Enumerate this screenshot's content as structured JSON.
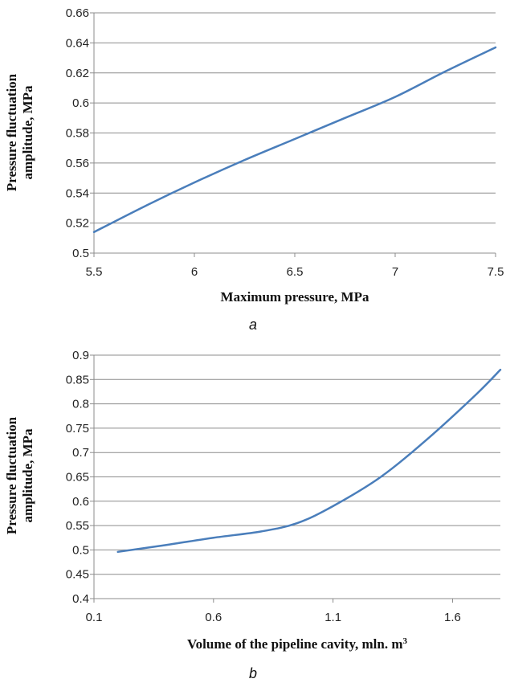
{
  "chart_data": [
    {
      "type": "line",
      "panel_label": "a",
      "xlabel": "Maximum pressure, MPa",
      "ylabel": [
        "Pressure fluctuation",
        "amplitude, MPa"
      ],
      "xlim": [
        5.5,
        7.5
      ],
      "ylim": [
        0.5,
        0.66
      ],
      "x_ticks": [
        5.5,
        6,
        6.5,
        7,
        7.5
      ],
      "y_ticks": [
        0.5,
        0.52,
        0.54,
        0.56,
        0.58,
        0.6,
        0.62,
        0.64,
        0.66
      ],
      "x_tick_labels": [
        "5.5",
        "6",
        "6.5",
        "7",
        "7.5"
      ],
      "y_tick_labels": [
        "0.5",
        "0.52",
        "0.54",
        "0.56",
        "0.58",
        "0.6",
        "0.62",
        "0.64",
        "0.66"
      ],
      "grid": "horizontal",
      "series": [
        {
          "color": "#4a7ebb",
          "x": [
            5.5,
            5.75,
            6.0,
            6.25,
            6.5,
            6.75,
            7.0,
            7.25,
            7.5
          ],
          "y": [
            0.514,
            0.531,
            0.547,
            0.562,
            0.576,
            0.59,
            0.604,
            0.621,
            0.637
          ]
        }
      ]
    },
    {
      "type": "line",
      "panel_label": "b",
      "xlabel": "Volume of the pipeline cavity, mln. m",
      "xlabel_sup": "3",
      "ylabel": [
        "Pressure fluctuation",
        "amplitude, MPa"
      ],
      "xlim": [
        0.1,
        1.8
      ],
      "ylim": [
        0.4,
        0.9
      ],
      "x_ticks": [
        0.1,
        0.6,
        1.1,
        1.6
      ],
      "y_ticks": [
        0.4,
        0.45,
        0.5,
        0.55,
        0.6,
        0.65,
        0.7,
        0.75,
        0.8,
        0.85,
        0.9
      ],
      "x_tick_labels": [
        "0.1",
        "0.6",
        "1.1",
        "1.6"
      ],
      "y_tick_labels": [
        "0.4",
        "0.45",
        "0.5",
        "0.55",
        "0.6",
        "0.65",
        "0.7",
        "0.75",
        "0.8",
        "0.85",
        "0.9"
      ],
      "grid": "horizontal",
      "series": [
        {
          "color": "#4a7ebb",
          "x": [
            0.2,
            0.4,
            0.6,
            0.8,
            0.95,
            1.1,
            1.3,
            1.5,
            1.7,
            1.8
          ],
          "y": [
            0.496,
            0.51,
            0.525,
            0.538,
            0.555,
            0.59,
            0.65,
            0.73,
            0.82,
            0.87
          ]
        }
      ]
    }
  ]
}
